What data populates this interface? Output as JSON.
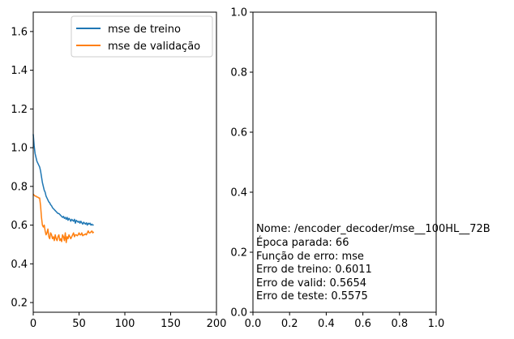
{
  "chart_data": [
    {
      "type": "line",
      "xlim": [
        0,
        200
      ],
      "ylim": [
        0.15,
        1.7
      ],
      "xticks": [
        0,
        50,
        100,
        150,
        200
      ],
      "yticks": [
        0.2,
        0.4,
        0.6,
        0.8,
        1.0,
        1.2,
        1.4,
        1.6
      ],
      "xtick_labels": [
        "0",
        "50",
        "100",
        "150",
        "200"
      ],
      "ytick_labels": [
        "0.2",
        "0.4",
        "0.6",
        "0.8",
        "1.0",
        "1.2",
        "1.4",
        "1.6"
      ],
      "grid": false,
      "legend_position": "top-right",
      "series": [
        {
          "name": "mse de treino",
          "color": "#1f77b4",
          "x": [
            0,
            1,
            2,
            3,
            4,
            5,
            6,
            7,
            8,
            9,
            10,
            11,
            12,
            13,
            14,
            15,
            16,
            17,
            18,
            19,
            20,
            21,
            22,
            23,
            24,
            25,
            26,
            27,
            28,
            29,
            30,
            31,
            32,
            33,
            34,
            35,
            36,
            37,
            38,
            39,
            40,
            41,
            42,
            43,
            44,
            45,
            46,
            47,
            48,
            49,
            50,
            51,
            52,
            53,
            54,
            55,
            56,
            57,
            58,
            59,
            60,
            61,
            62,
            63,
            64,
            65,
            66
          ],
          "y": [
            1.07,
            1.01,
            0.97,
            0.95,
            0.93,
            0.92,
            0.91,
            0.9,
            0.88,
            0.85,
            0.82,
            0.8,
            0.78,
            0.77,
            0.75,
            0.74,
            0.73,
            0.72,
            0.715,
            0.705,
            0.7,
            0.69,
            0.685,
            0.68,
            0.675,
            0.67,
            0.665,
            0.66,
            0.66,
            0.655,
            0.65,
            0.645,
            0.64,
            0.645,
            0.635,
            0.64,
            0.63,
            0.64,
            0.625,
            0.635,
            0.63,
            0.62,
            0.63,
            0.625,
            0.62,
            0.63,
            0.61,
            0.625,
            0.62,
            0.615,
            0.62,
            0.61,
            0.62,
            0.612,
            0.605,
            0.615,
            0.61,
            0.605,
            0.612,
            0.6,
            0.61,
            0.605,
            0.61,
            0.6,
            0.605,
            0.6,
            0.6011
          ]
        },
        {
          "name": "mse de validação",
          "color": "#ff7f0e",
          "x": [
            0,
            1,
            2,
            3,
            4,
            5,
            6,
            7,
            8,
            9,
            10,
            11,
            12,
            13,
            14,
            15,
            16,
            17,
            18,
            19,
            20,
            21,
            22,
            23,
            24,
            25,
            26,
            27,
            28,
            29,
            30,
            31,
            32,
            33,
            34,
            35,
            36,
            37,
            38,
            39,
            40,
            41,
            42,
            43,
            44,
            45,
            46,
            47,
            48,
            49,
            50,
            51,
            52,
            53,
            54,
            55,
            56,
            57,
            58,
            59,
            60,
            61,
            62,
            63,
            64,
            65,
            66
          ],
          "y": [
            0.76,
            0.755,
            0.75,
            0.75,
            0.745,
            0.745,
            0.74,
            0.74,
            0.7,
            0.64,
            0.6,
            0.59,
            0.6,
            0.57,
            0.55,
            0.56,
            0.58,
            0.54,
            0.53,
            0.56,
            0.55,
            0.53,
            0.54,
            0.52,
            0.55,
            0.53,
            0.52,
            0.54,
            0.55,
            0.52,
            0.53,
            0.515,
            0.55,
            0.54,
            0.52,
            0.56,
            0.51,
            0.54,
            0.53,
            0.55,
            0.54,
            0.53,
            0.54,
            0.55,
            0.56,
            0.54,
            0.55,
            0.55,
            0.545,
            0.55,
            0.56,
            0.55,
            0.55,
            0.56,
            0.545,
            0.55,
            0.55,
            0.555,
            0.55,
            0.56,
            0.57,
            0.56,
            0.56,
            0.565,
            0.57,
            0.56,
            0.5654
          ]
        }
      ]
    },
    {
      "type": "text",
      "xlim": [
        0,
        1
      ],
      "ylim": [
        0,
        1
      ],
      "xticks": [
        0,
        0.2,
        0.4,
        0.6,
        0.8,
        1.0
      ],
      "yticks": [
        0,
        0.2,
        0.4,
        0.6,
        0.8,
        1.0
      ],
      "xtick_labels": [
        "0.0",
        "0.2",
        "0.4",
        "0.6",
        "0.8",
        "1.0"
      ],
      "ytick_labels": [
        "0.0",
        "0.2",
        "0.4",
        "0.6",
        "0.8",
        "1.0"
      ],
      "grid": false,
      "text_lines": [
        "Nome: /encoder_decoder/mse__100HL__72B",
        "Época parada: 66",
        "Função de erro: mse",
        "Erro de treino: 0.6011",
        "Erro de valid: 0.5654",
        "Erro de teste: 0.5575"
      ]
    }
  ]
}
